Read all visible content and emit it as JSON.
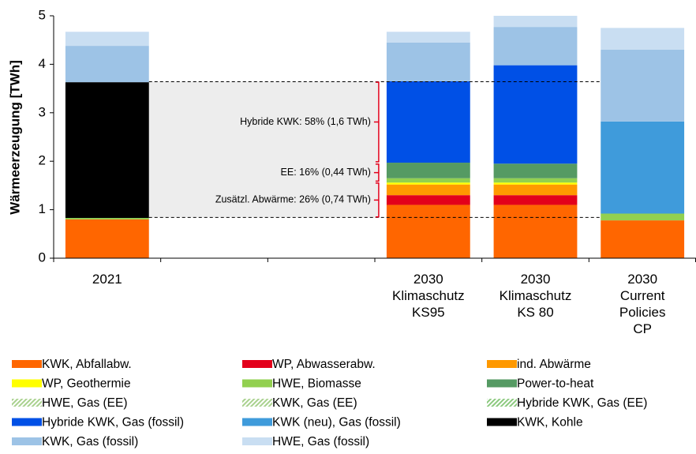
{
  "chart_data": {
    "type": "stacked_bar",
    "ylabel": "Wärmeerzeugung [TWh]",
    "categories": [
      [
        "2021"
      ],
      null,
      null,
      [
        "2030",
        "Klimaschutz",
        "KS95"
      ],
      [
        "2030",
        "Klimaschutz",
        "KS 80"
      ],
      [
        "2030",
        "Current",
        "Policies",
        "CP"
      ]
    ],
    "ylim": [
      0,
      5
    ],
    "yticks": [
      0,
      1,
      2,
      3,
      4,
      5
    ],
    "legend": "bottom",
    "series": [
      {
        "name": "KWK, Abfallabw.",
        "color": "#ff6600",
        "values": [
          0.8,
          null,
          null,
          1.1,
          1.1,
          0.78
        ]
      },
      {
        "name": "WP, Abwasserabw.",
        "color": "#e3001b",
        "values": [
          0,
          null,
          null,
          0.2,
          0.2,
          0
        ]
      },
      {
        "name": "ind. Abwärme",
        "color": "#ff9900",
        "values": [
          0,
          null,
          null,
          0.22,
          0.22,
          0
        ]
      },
      {
        "name": "WP, Geothermie",
        "color": "#ffff00",
        "values": [
          0,
          null,
          null,
          0.04,
          0.04,
          0
        ]
      },
      {
        "name": "HWE, Biomasse",
        "color": "#92d050",
        "values": [
          0.03,
          null,
          null,
          0.09,
          0.09,
          0.14
        ]
      },
      {
        "name": "Power-to-heat",
        "color": "#559a63",
        "values": [
          0,
          null,
          null,
          0.32,
          0.3,
          0
        ]
      },
      {
        "name": "HWE, Gas (EE)",
        "color": "#a9d18e",
        "pattern": "hatched",
        "values": [
          0,
          null,
          null,
          0,
          0,
          0
        ]
      },
      {
        "name": "KWK, Gas (EE)",
        "color": "#a9d18e",
        "pattern": "hatched",
        "values": [
          0,
          null,
          null,
          0,
          0,
          0
        ]
      },
      {
        "name": "Hybride KWK, Gas (EE)",
        "color": "#8cc97f",
        "pattern": "hatched",
        "values": [
          0,
          null,
          null,
          0,
          0,
          0
        ]
      },
      {
        "name": "Hybride KWK, Gas (fossil)",
        "color": "#0050e6",
        "values": [
          0,
          null,
          null,
          1.68,
          2.03,
          0
        ]
      },
      {
        "name": "KWK (neu), Gas (fossil)",
        "color": "#3f9bdb",
        "values": [
          0,
          null,
          null,
          0,
          0,
          1.9
        ]
      },
      {
        "name": "KWK, Kohle",
        "color": "#000000",
        "values": [
          2.8,
          null,
          null,
          0,
          0,
          0
        ]
      },
      {
        "name": "KWK, Gas (fossil)",
        "color": "#9dc3e6",
        "values": [
          0.75,
          null,
          null,
          0.8,
          0.79,
          1.48
        ]
      },
      {
        "name": "HWE, Gas (fossil)",
        "color": "#c9def2",
        "values": [
          0.29,
          null,
          null,
          0.22,
          0.23,
          0.45
        ]
      }
    ],
    "highlight_range": [
      0.84,
      3.64
    ],
    "annotations": [
      {
        "text": "Hybride KWK: 58% (1,6 TWh)",
        "range": [
          1.99,
          3.63
        ]
      },
      {
        "text": "EE: 16% (0,44 TWh)",
        "range": [
          1.59,
          1.94
        ]
      },
      {
        "text": "Zusätzl.  Abwärme: 26% (0,74 TWh)",
        "range": [
          0.85,
          1.55
        ]
      }
    ]
  }
}
